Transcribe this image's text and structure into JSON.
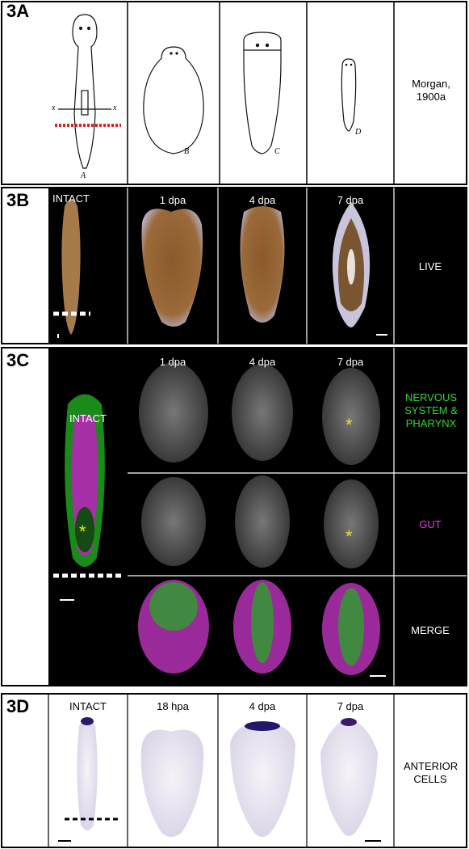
{
  "panels": [
    {
      "label": "3A",
      "drawing_labels": [
        "A",
        "B",
        "C",
        "D"
      ],
      "axis_marks": [
        "x",
        "x"
      ],
      "caption": "Morgan, 1900a"
    },
    {
      "label": "3B",
      "column_headers": [
        "INTACT",
        "1 dpa",
        "4 dpa",
        "7 dpa"
      ],
      "row_label": "LIVE"
    },
    {
      "label": "3C",
      "column_headers": [
        "INTACT",
        "1 dpa",
        "4 dpa",
        "7 dpa"
      ],
      "row_labels": [
        "NERVOUS SYSTEM & PHARYNX",
        "GUT",
        "MERGE"
      ],
      "markers": [
        "*",
        "*",
        "*"
      ]
    },
    {
      "label": "3D",
      "column_headers": [
        "INTACT",
        "18 hpa",
        "4 dpa",
        "7 dpa"
      ],
      "row_label": "ANTERIOR CELLS"
    }
  ]
}
